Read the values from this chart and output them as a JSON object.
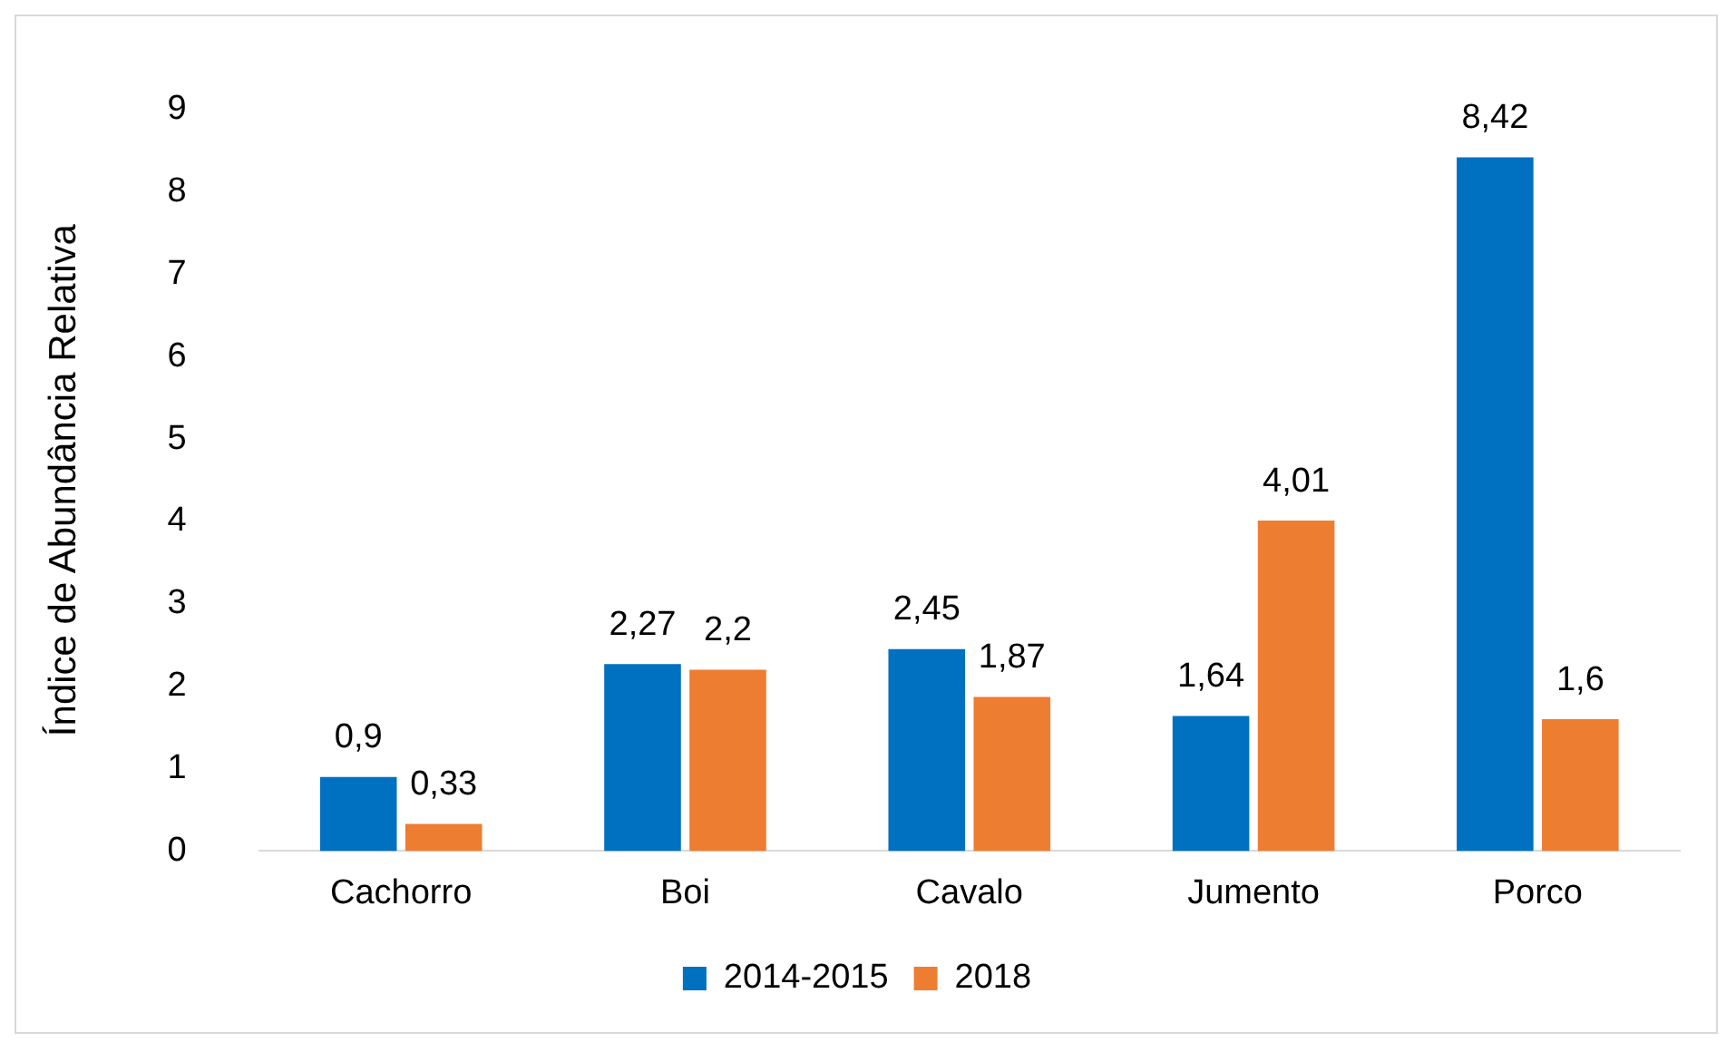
{
  "chart_data": {
    "type": "bar",
    "ylabel": "Índice de Abundância Relativa",
    "categories": [
      "Cachorro",
      "Boi",
      "Cavalo",
      "Jumento",
      "Porco"
    ],
    "series": [
      {
        "name": "2014-2015",
        "color": "#0070c0",
        "values": [
          0.9,
          2.27,
          2.45,
          1.64,
          8.42
        ],
        "value_labels": [
          "0,9",
          "2,27",
          "2,45",
          "1,64",
          "8,42"
        ]
      },
      {
        "name": "2018",
        "color": "#ed7d31",
        "values": [
          0.33,
          2.2,
          1.87,
          4.01,
          1.6
        ],
        "value_labels": [
          "0,33",
          "2,2",
          "1,87",
          "4,01",
          "1,6"
        ]
      }
    ],
    "ylim": [
      0,
      9
    ],
    "yticks": [
      0,
      1,
      2,
      3,
      4,
      5,
      6,
      7,
      8,
      9
    ],
    "grid": false,
    "legend": "bottom"
  }
}
